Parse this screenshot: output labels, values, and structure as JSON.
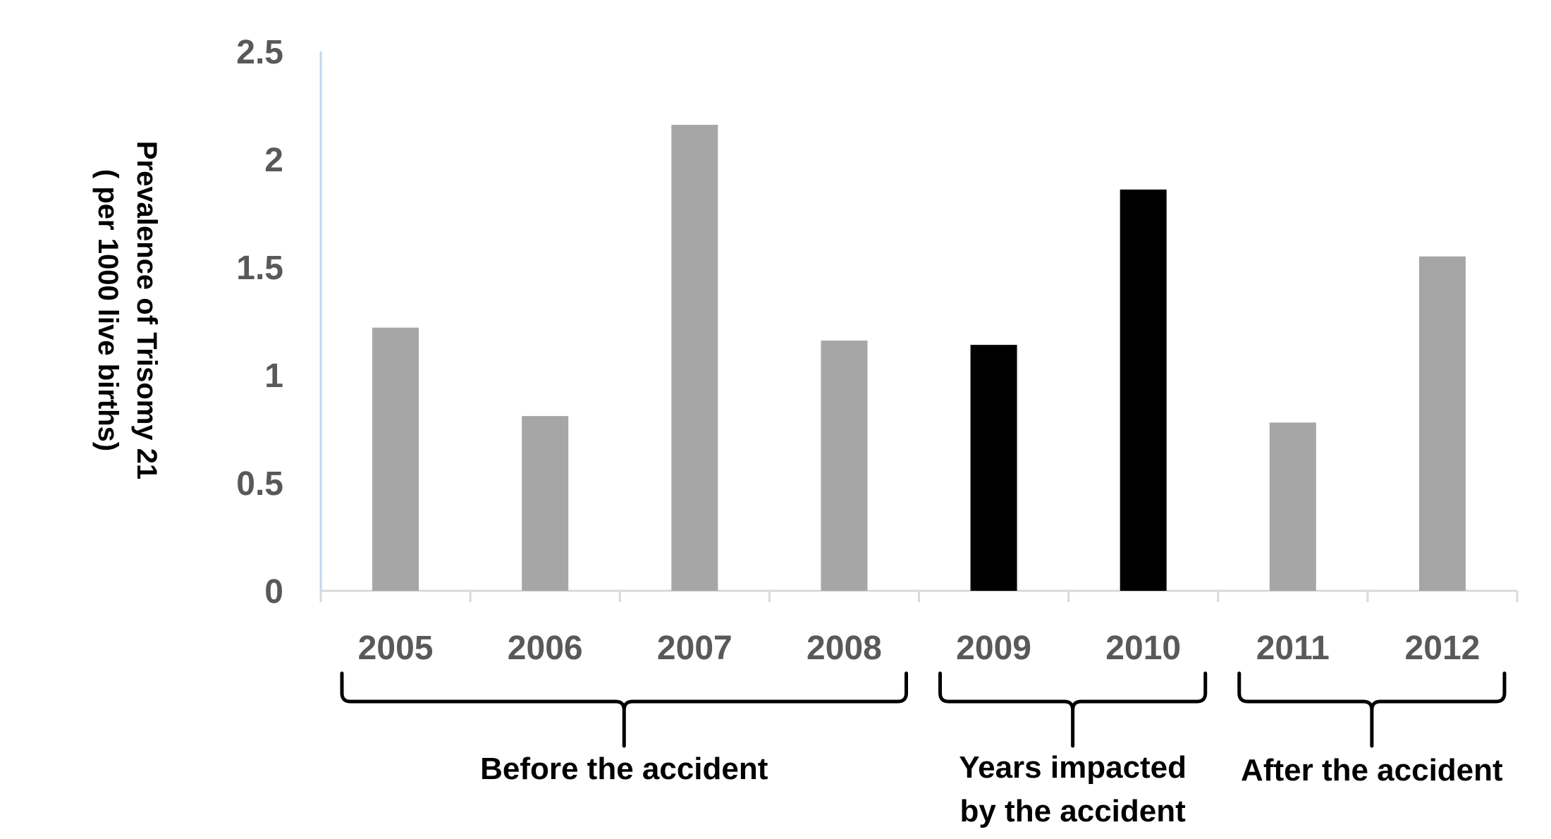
{
  "chart_data": {
    "type": "bar",
    "categories": [
      "2005",
      "2006",
      "2007",
      "2008",
      "2009",
      "2010",
      "2011",
      "2012"
    ],
    "values": [
      1.22,
      0.81,
      2.16,
      1.16,
      1.14,
      1.86,
      0.78,
      1.55
    ],
    "bar_colors": [
      "#a6a6a6",
      "#a6a6a6",
      "#a6a6a6",
      "#a6a6a6",
      "#000000",
      "#000000",
      "#a6a6a6",
      "#a6a6a6"
    ],
    "ylabel_line1": "Prevalence of Trisomy 21",
    "ylabel_line2": "( per 1000 live births)",
    "ylim": [
      0,
      2.5
    ],
    "yticks": [
      "0",
      "0.5",
      "1",
      "1.5",
      "2",
      "2.5"
    ],
    "grid": false,
    "groups": [
      {
        "lines": [
          "Before the accident"
        ],
        "from": 0,
        "to": 3
      },
      {
        "lines": [
          "Years impacted",
          "by the accident"
        ],
        "from": 4,
        "to": 5
      },
      {
        "lines": [
          "After the accident"
        ],
        "from": 6,
        "to": 7
      }
    ]
  }
}
